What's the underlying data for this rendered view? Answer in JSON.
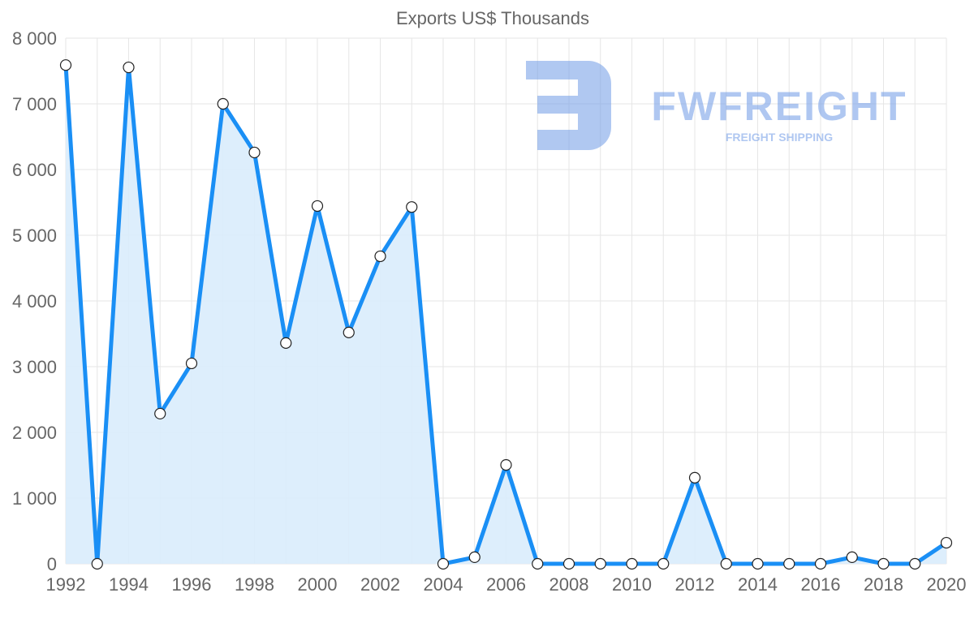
{
  "chart_data": {
    "type": "area",
    "title": "Exports US$ Thousands",
    "xlabel": "",
    "ylabel": "",
    "x": [
      1992,
      1993,
      1994,
      1995,
      1996,
      1997,
      1998,
      1999,
      2000,
      2001,
      2002,
      2003,
      2004,
      2005,
      2006,
      2007,
      2008,
      2009,
      2010,
      2011,
      2012,
      2013,
      2014,
      2015,
      2016,
      2017,
      2018,
      2019,
      2020
    ],
    "series": [
      {
        "name": "Exports",
        "values": [
          7590,
          0,
          7555,
          2285,
          3050,
          7000,
          6260,
          3360,
          5445,
          3520,
          4680,
          5430,
          0,
          100,
          1505,
          0,
          0,
          0,
          0,
          0,
          1310,
          0,
          0,
          0,
          0,
          100,
          0,
          0,
          320
        ]
      }
    ],
    "ylim": [
      0,
      8000
    ],
    "xlim": [
      1992,
      2020
    ],
    "y_ticks": [
      "0",
      "1 000",
      "2 000",
      "3 000",
      "4 000",
      "5 000",
      "6 000",
      "7 000",
      "8 000"
    ],
    "x_ticks": [
      "1992",
      "1994",
      "1996",
      "1998",
      "2000",
      "2002",
      "2004",
      "2006",
      "2008",
      "2010",
      "2012",
      "2014",
      "2016",
      "2018",
      "2020"
    ],
    "grid": true,
    "line_color": "#1a8ff5",
    "fill_color": "#d9ecfc"
  },
  "watermark": {
    "brand": "FWFREIGHT",
    "tagline": "FREIGHT SHIPPING"
  }
}
